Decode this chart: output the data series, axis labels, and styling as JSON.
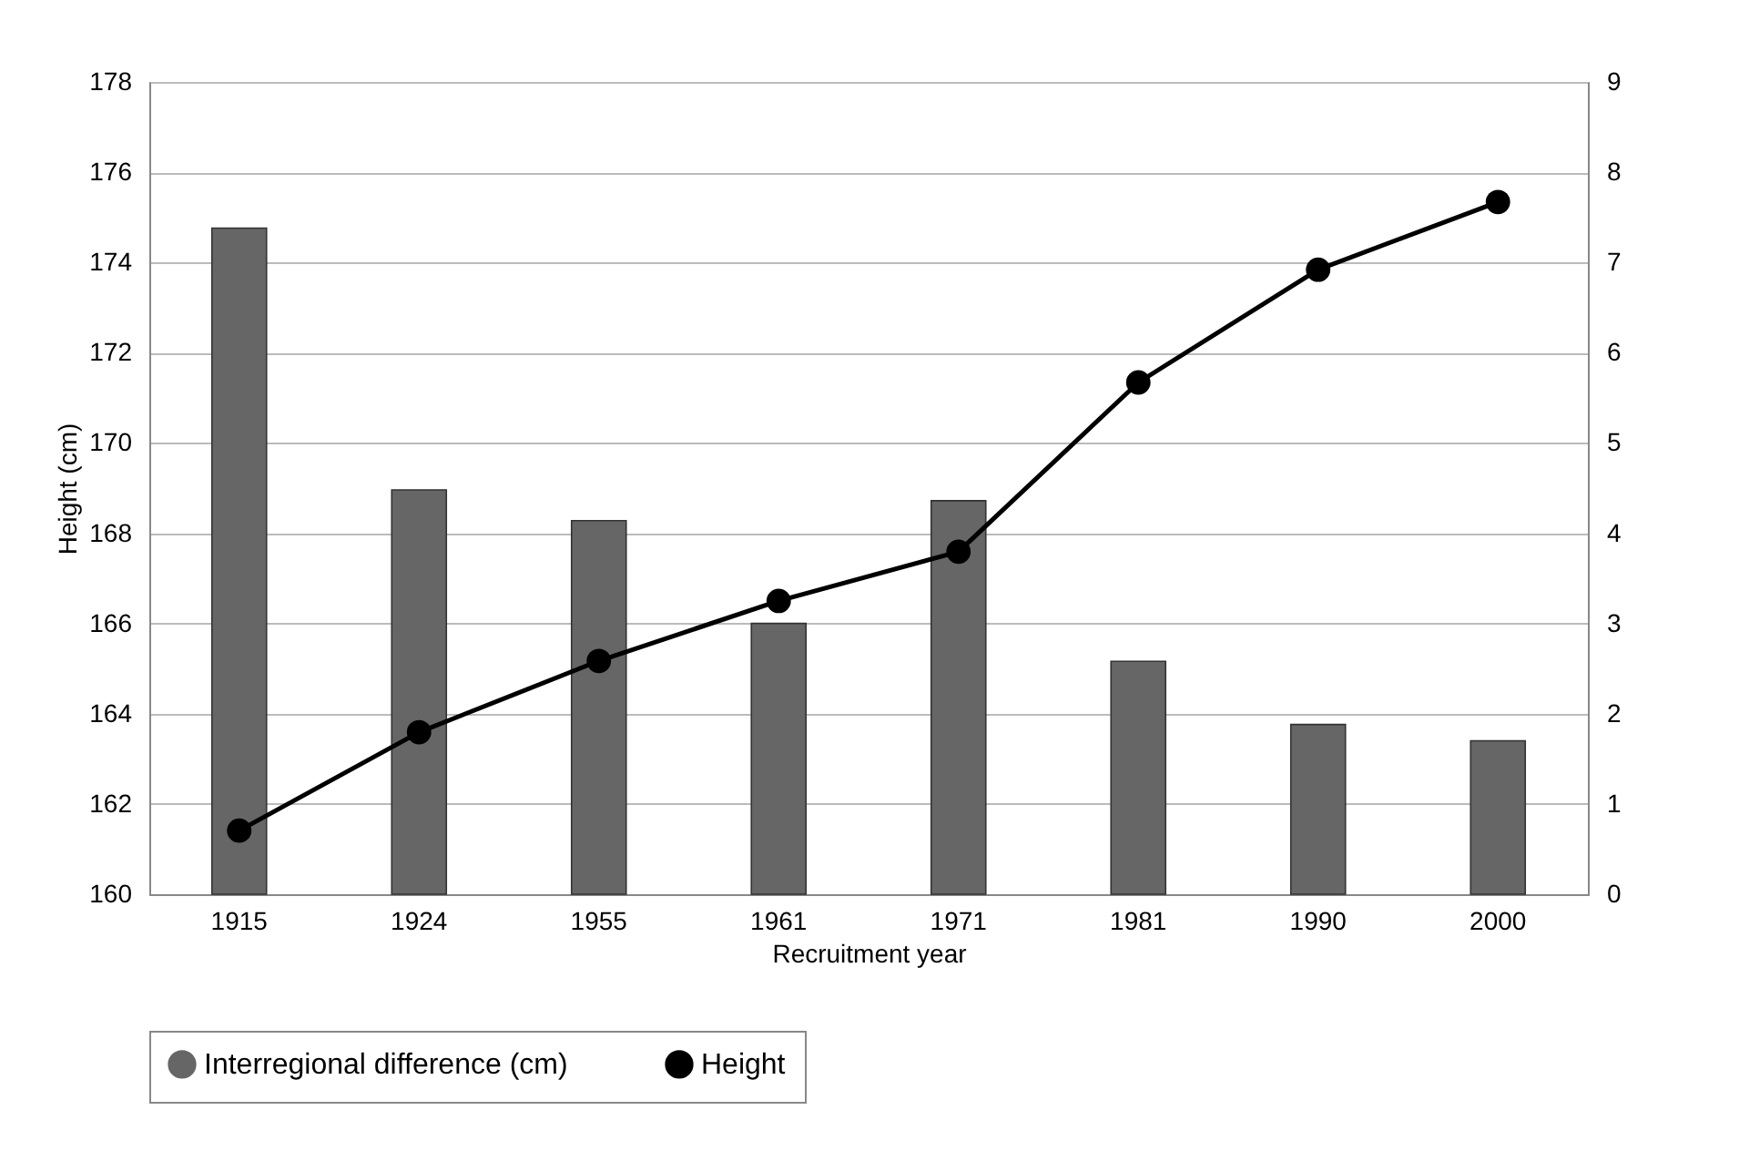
{
  "chart_data": {
    "type": "bar",
    "categories": [
      "1915",
      "1924",
      "1955",
      "1961",
      "1971",
      "1981",
      "1990",
      "2000"
    ],
    "series": [
      {
        "name": "Interregional difference (cm)",
        "axis": "y2",
        "color": "#666666",
        "values": [
          7.38,
          4.48,
          4.14,
          3.0,
          4.36,
          2.58,
          1.88,
          1.7
        ]
      },
      {
        "name": "Height",
        "type": "line",
        "axis": "y",
        "color": "#000000",
        "values": [
          161.41,
          163.59,
          165.17,
          166.5,
          167.59,
          171.34,
          173.84,
          175.34
        ]
      }
    ],
    "xlabel": "Recruitment year",
    "ylabel": "Height (cm)",
    "ylim": [
      160,
      178
    ],
    "yticks": [
      160,
      162,
      164,
      166,
      168,
      170,
      172,
      174,
      176,
      178
    ],
    "y2lim": [
      0,
      9
    ],
    "y2ticks": [
      0,
      1,
      2,
      3,
      4,
      5,
      6,
      7,
      8,
      9
    ],
    "grid": "y",
    "legend": "bottom",
    "marker": "circle"
  }
}
